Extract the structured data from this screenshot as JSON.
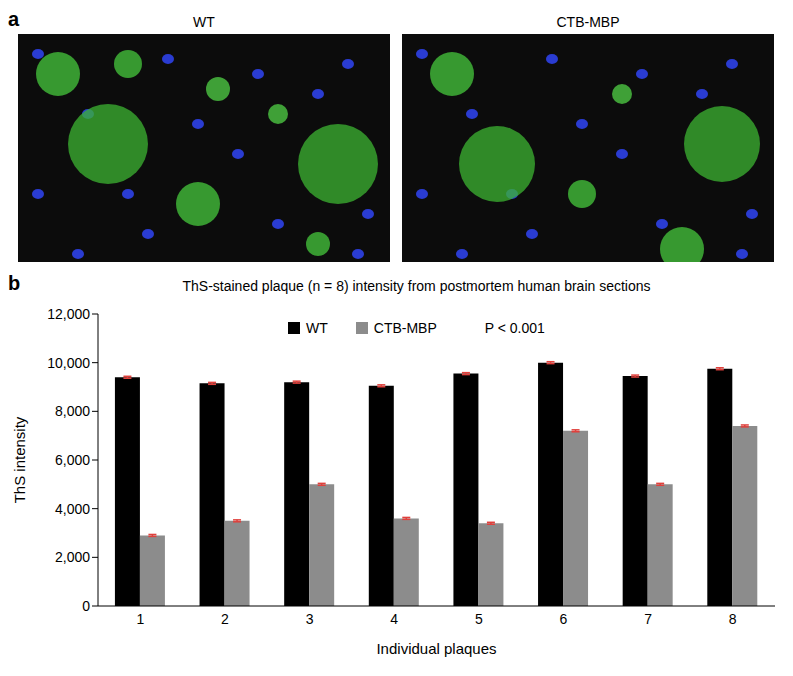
{
  "figure": {
    "panel_a": {
      "label": "a",
      "images": [
        "WT",
        "CTB-MBP"
      ]
    },
    "panel_b": {
      "label": "b"
    }
  },
  "chart_data": {
    "type": "bar",
    "title": "ThS-stained plaque (n = 8) intensity from postmortem human brain sections",
    "x_label": "Individual plaques",
    "y_label": "ThS intensity",
    "annotations": [
      "P < 0.001"
    ],
    "categories": [
      "1",
      "2",
      "3",
      "4",
      "5",
      "6",
      "7",
      "8"
    ],
    "series": [
      {
        "name": "WT",
        "color": "#000000",
        "values": [
          9400,
          9150,
          9200,
          9050,
          9550,
          10000,
          9450,
          9750
        ],
        "errors": [
          40,
          40,
          40,
          40,
          40,
          40,
          40,
          40
        ]
      },
      {
        "name": "CTB-MBP",
        "color": "#8c8c8c",
        "values": [
          2900,
          3500,
          5000,
          3600,
          3400,
          7200,
          5000,
          7400
        ],
        "errors": [
          40,
          40,
          40,
          40,
          40,
          40,
          40,
          40
        ]
      }
    ],
    "ylim": [
      0,
      12000
    ],
    "yticks": [
      0,
      {
        "value": 2000,
        "label": "2,000"
      },
      {
        "value": 4000,
        "label": "4,000"
      },
      {
        "value": 6000,
        "label": "6,000"
      },
      {
        "value": 8000,
        "label": "8,000"
      },
      {
        "value": 10000,
        "label": "10,000"
      },
      {
        "value": 12000,
        "label": "12,000"
      }
    ],
    "legend": "top",
    "grid": false
  }
}
